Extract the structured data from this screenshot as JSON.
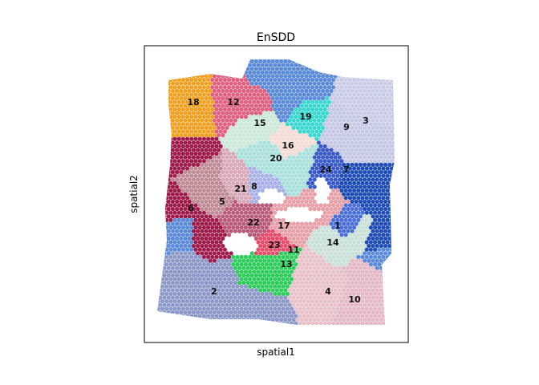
{
  "chart_data": {
    "type": "scatter",
    "title": "EnSDD",
    "xlabel": "spatial1",
    "ylabel": "spatial2",
    "grid": false,
    "legend": "none",
    "ticks": "none",
    "clusters": [
      {
        "id": "1",
        "color": "#4a6fd8"
      },
      {
        "id": "2",
        "color": "#8b98c8"
      },
      {
        "id": "3",
        "color": "#c8cbe6"
      },
      {
        "id": "4",
        "color": "#e8c0c8"
      },
      {
        "id": "5",
        "color": "#c08a94"
      },
      {
        "id": "6",
        "color": "#9e1a4a"
      },
      {
        "id": "7",
        "color": "#1f4db5"
      },
      {
        "id": "8",
        "color": "#a8b0e8"
      },
      {
        "id": "9",
        "color": "#c4c8e4"
      },
      {
        "id": "10",
        "color": "#e4b8c4"
      },
      {
        "id": "11",
        "color": "#5a8ad8"
      },
      {
        "id": "12",
        "color": "#e06080"
      },
      {
        "id": "13",
        "color": "#2ecc5a"
      },
      {
        "id": "14",
        "color": "#c8e0d8"
      },
      {
        "id": "15",
        "color": "#cce8d8"
      },
      {
        "id": "16",
        "color": "#f4dcd4"
      },
      {
        "id": "17",
        "color": "#e8a0a8"
      },
      {
        "id": "18",
        "color": "#f0a020"
      },
      {
        "id": "19",
        "color": "#38d8d0"
      },
      {
        "id": "20",
        "color": "#a8e0dc"
      },
      {
        "id": "21",
        "color": "#d8a8b8"
      },
      {
        "id": "22",
        "color": "#b85a78"
      },
      {
        "id": "23",
        "color": "#e84a6a"
      },
      {
        "id": "24",
        "color": "#3a5ac8"
      }
    ]
  }
}
